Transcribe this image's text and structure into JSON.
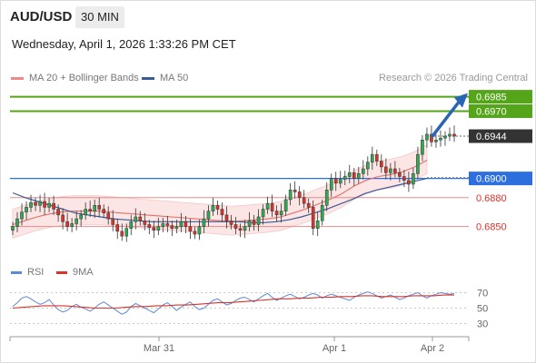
{
  "header": {
    "symbol": "AUD/USD",
    "timeframe": "30 MIN",
    "datetime": "Wednesday, April 1, 2026 1:33:26 PM CET"
  },
  "legend": {
    "ma20_label": "MA 20 + Bollinger Bands",
    "ma50_label": "MA 50",
    "source": "Research © 2026 Trading Central"
  },
  "rsi_legend": {
    "rsi_label": "RSI",
    "ma_label": "9MA"
  },
  "colors": {
    "candle_up": "#32a852",
    "candle_down": "#d9342b",
    "ma20": "#e0706a",
    "ma50": "#3a5b96",
    "bollinger_fill": "#fbe3e3",
    "target": "#55a51b",
    "pivot": "#2e6fe0",
    "support": "#e88b8b",
    "current": "#333333",
    "arrow": "#2a64b5",
    "rsi": "#5b8ad6",
    "rsi_ma": "#d9342b"
  },
  "chart_data": {
    "type": "candlestick",
    "x_ticks": [
      "Mar 31",
      "Apr 1",
      "Apr 2"
    ],
    "y_range": [
      0.6826,
      0.6995
    ],
    "levels": [
      {
        "label": "0.6985",
        "value": 0.6985,
        "kind": "target"
      },
      {
        "label": "0.6970",
        "value": 0.697,
        "kind": "target"
      },
      {
        "label": "0.6944",
        "value": 0.6944,
        "kind": "current"
      },
      {
        "label": "0.6900",
        "value": 0.69,
        "kind": "pivot"
      },
      {
        "label": "0.6880",
        "value": 0.688,
        "kind": "support"
      },
      {
        "label": "0.6850",
        "value": 0.685,
        "kind": "support"
      }
    ],
    "closes": [
      0.685,
      0.6858,
      0.6865,
      0.687,
      0.6875,
      0.6872,
      0.6876,
      0.687,
      0.6874,
      0.6868,
      0.6862,
      0.6855,
      0.685,
      0.6853,
      0.6858,
      0.6862,
      0.6868,
      0.6866,
      0.6872,
      0.6868,
      0.6864,
      0.6858,
      0.6852,
      0.6845,
      0.684,
      0.6848,
      0.6855,
      0.686,
      0.6856,
      0.6852,
      0.6849,
      0.6846,
      0.685,
      0.6853,
      0.6851,
      0.6848,
      0.685,
      0.6855,
      0.685,
      0.6845,
      0.6842,
      0.685,
      0.6858,
      0.6866,
      0.6872,
      0.6868,
      0.6862,
      0.6856,
      0.6852,
      0.6848,
      0.6846,
      0.685,
      0.6856,
      0.6852,
      0.686,
      0.6868,
      0.6874,
      0.6866,
      0.6862,
      0.6866,
      0.6878,
      0.6888,
      0.6886,
      0.688,
      0.6874,
      0.687,
      0.6848,
      0.6856,
      0.6872,
      0.6888,
      0.69,
      0.6895,
      0.6899,
      0.6902,
      0.6906,
      0.69,
      0.6905,
      0.691,
      0.6917,
      0.6925,
      0.6918,
      0.6912,
      0.6906,
      0.691,
      0.6906,
      0.6902,
      0.6898,
      0.6894,
      0.6905,
      0.6925,
      0.694,
      0.6946,
      0.6938,
      0.694,
      0.6942,
      0.6944,
      0.6946,
      0.6944
    ],
    "ma20": [
      0.6852,
      0.6856,
      0.686,
      0.6863,
      0.6865,
      0.6866,
      0.6866,
      0.6866,
      0.6865,
      0.6864,
      0.6863,
      0.6862,
      0.6861,
      0.686,
      0.6859,
      0.6858,
      0.6857,
      0.6856,
      0.6855,
      0.6856,
      0.6857,
      0.6858,
      0.686,
      0.6864,
      0.6868,
      0.6873,
      0.6878,
      0.6884,
      0.6892,
      0.6898,
      0.6902,
      0.6904,
      0.6907,
      0.6912,
      0.6919
    ],
    "ma50": [
      0.6885,
      0.688,
      0.6876,
      0.6872,
      0.6868,
      0.6864,
      0.6862,
      0.686,
      0.6858,
      0.6857,
      0.6856,
      0.6855,
      0.6855,
      0.6855,
      0.6855,
      0.6855,
      0.6855,
      0.6855,
      0.6855,
      0.6854,
      0.6854,
      0.6855,
      0.6857,
      0.686,
      0.6864,
      0.6868,
      0.6873,
      0.6878,
      0.6884,
      0.6888,
      0.6891,
      0.6894,
      0.6897,
      0.69
    ],
    "arrow": {
      "from_value": 0.6944,
      "to_value": 0.6985
    },
    "rsi": {
      "y_ticks": [
        "70",
        "50",
        "30"
      ],
      "y_range": [
        20,
        80
      ],
      "values": [
        52,
        57,
        63,
        65,
        62,
        58,
        55,
        57,
        61,
        54,
        48,
        45,
        47,
        52,
        55,
        51,
        49,
        46,
        50,
        55,
        58,
        54,
        50,
        46,
        42,
        45,
        52,
        56,
        53,
        50,
        47,
        44,
        49,
        54,
        57,
        52,
        47,
        51,
        55,
        58,
        52,
        48,
        50,
        55,
        60,
        62,
        58,
        54,
        56,
        60,
        63,
        64,
        61,
        58,
        62,
        66,
        69,
        64,
        60,
        63,
        66,
        68,
        65,
        62,
        64,
        67,
        69,
        67,
        63,
        66,
        68,
        66,
        64,
        62,
        60,
        64,
        67,
        69,
        71,
        69,
        66,
        63,
        65,
        67,
        64,
        61,
        63,
        66,
        68,
        70,
        66,
        63,
        66,
        68,
        70,
        69,
        68,
        69
      ],
      "ma9": [
        50,
        51,
        52,
        53,
        53,
        53,
        52,
        51,
        50,
        50,
        50,
        51,
        52,
        52,
        53,
        53,
        54,
        54,
        55,
        56,
        57,
        57,
        58,
        59,
        60,
        61,
        62,
        62,
        63,
        63,
        64,
        64,
        65,
        65,
        66,
        66,
        65,
        65,
        65,
        66,
        66,
        66,
        67,
        67
      ]
    }
  }
}
